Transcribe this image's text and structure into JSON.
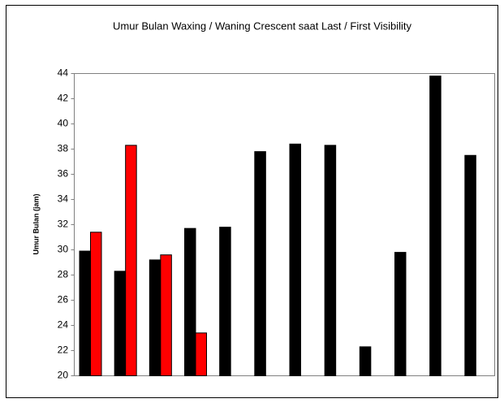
{
  "chart_data": {
    "type": "bar",
    "title": "Umur Bulan Waxing / Waning Crescent saat Last / First Visibility",
    "y_label": "Umur Bulan (jam)",
    "categories": [
      null,
      null,
      null,
      null,
      null,
      null,
      null,
      null,
      null,
      null,
      null,
      null
    ],
    "series": [
      {
        "color": "#000000",
        "values": [
          29.9,
          28.3,
          29.2,
          31.7,
          31.8,
          37.8,
          38.4,
          38.3,
          22.3,
          29.8,
          43.8,
          37.5
        ]
      },
      {
        "color": "#ff0000",
        "values": [
          31.4,
          38.3,
          29.6,
          23.4,
          null,
          null,
          null,
          null,
          null,
          null,
          null,
          null
        ]
      }
    ],
    "ylim": [
      20,
      44
    ],
    "yticks": [
      20,
      22,
      24,
      26,
      28,
      30,
      32,
      34,
      36,
      38,
      40,
      42,
      44
    ]
  }
}
